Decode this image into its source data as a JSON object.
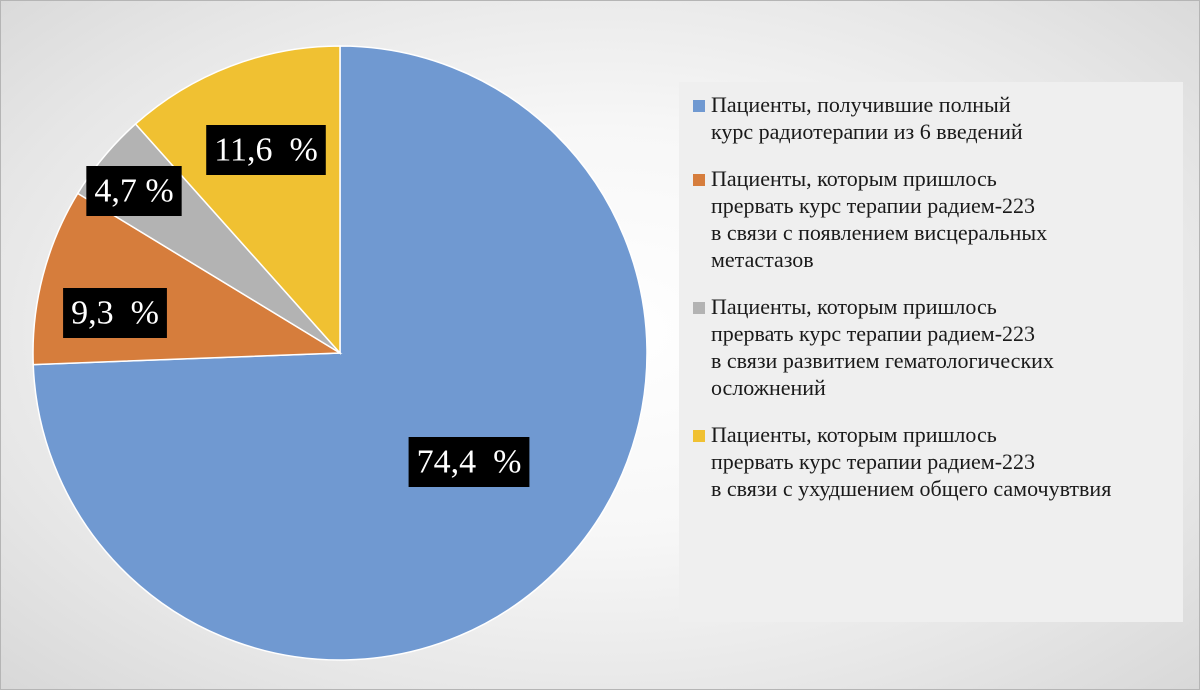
{
  "chart_data": {
    "type": "pie",
    "start_angle_deg": 0,
    "direction": "clockwise",
    "legend_position": "right",
    "slices": [
      {
        "label": "Пациенты, получившие полный\nкурс радиотерапии из 6 введений",
        "value": 74.4,
        "display": "74,4  %",
        "color": "#7099d1"
      },
      {
        "label": "Пациенты, которым пришлось\nпрервать курс терапии радием-223\nв связи с появлением висцеральных\nметастазов",
        "value": 9.3,
        "display": "9,3  %",
        "color": "#d67d3c"
      },
      {
        "label": "Пациенты, которым пришлось\nпрервать курс терапии радием-223\nв связи развитием гематологических\nосложнений",
        "value": 4.7,
        "display": "4,7 %",
        "color": "#b3b3b3"
      },
      {
        "label": "Пациенты, которым пришлось\nпрервать курс терапии радием-223\nв связи с ухудшением общего самочувтвия",
        "value": 11.6,
        "display": "11,6  %",
        "color": "#f0c132"
      }
    ]
  }
}
